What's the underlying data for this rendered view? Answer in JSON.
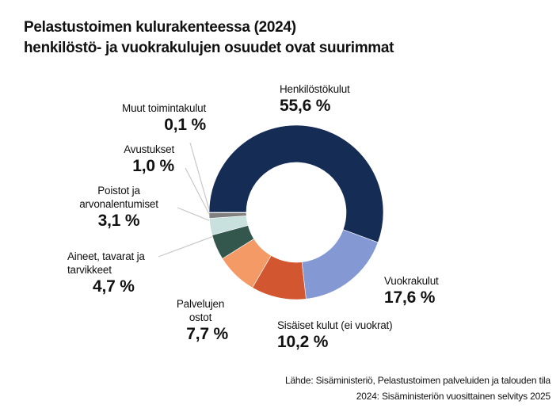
{
  "title_line1": "Pelastustoimen kulurakenteessa (2024)",
  "title_line2": "henkilöstö- ja vuokrakulujen osuudet ovat suurimmat",
  "source_line1": "Lähde: Sisäministeriö, Pelastustoimen palveluiden ja talouden tila",
  "source_line2": "2024: Sisäministeriön vuosittainen selvitys 2025",
  "chart_data": {
    "type": "pie",
    "donut": true,
    "unit": "%",
    "categories": [
      "Henkilöstökulut",
      "Vuokrakulut",
      "Sisäiset kulut (ei vuokrat)",
      "Palvelujen ostot",
      "Aineet, tavarat ja tarvikkeet",
      "Poistot ja arvonalentumiset",
      "Avustukset",
      "Muut toimintakulut"
    ],
    "values": [
      55.6,
      17.6,
      10.2,
      7.7,
      4.7,
      3.1,
      1.0,
      0.1
    ],
    "value_labels": [
      "55,6 %",
      "17,6 %",
      "10,2 %",
      "7,7 %",
      "4,7 %",
      "3,1 %",
      "1,0 %",
      "0,1 %"
    ],
    "colors": [
      "#152d55",
      "#8499d4",
      "#d25630",
      "#f39a67",
      "#33564d",
      "#c8e0de",
      "#808080",
      "#555555"
    ]
  }
}
